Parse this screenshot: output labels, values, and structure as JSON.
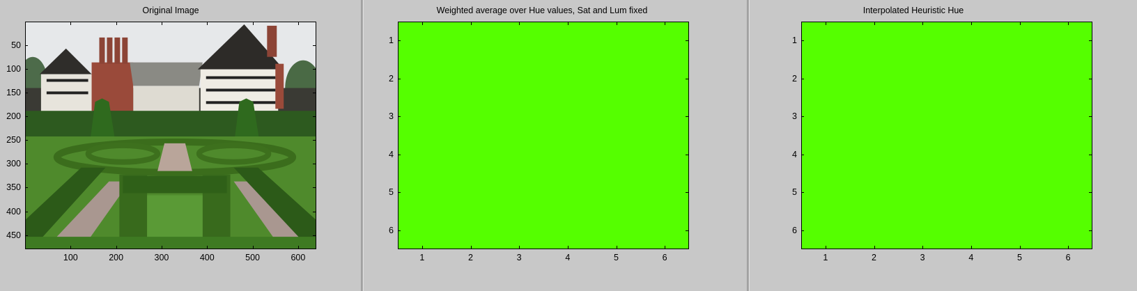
{
  "panels": [
    {
      "title": "Original Image",
      "kind": "image",
      "yticks": [
        "50",
        "100",
        "150",
        "200",
        "250",
        "300",
        "350",
        "400",
        "450"
      ],
      "xticks": [
        "100",
        "200",
        "300",
        "400",
        "500",
        "600"
      ]
    },
    {
      "title": "Weighted average over Hue values, Sat and Lum fixed",
      "kind": "uniform-color",
      "fill_color": "#55ff00",
      "yticks": [
        "1",
        "2",
        "3",
        "4",
        "5",
        "6"
      ],
      "xticks": [
        "1",
        "2",
        "3",
        "4",
        "5",
        "6"
      ]
    },
    {
      "title": "Interpolated Heuristic Hue",
      "kind": "uniform-color",
      "fill_color": "#55ff00",
      "yticks": [
        "1",
        "2",
        "3",
        "4",
        "5",
        "6"
      ],
      "xticks": [
        "1",
        "2",
        "3",
        "4",
        "5",
        "6"
      ]
    }
  ],
  "colors": {
    "figure_background": "#c8c8c8",
    "uniform_fill": "#55ff00"
  }
}
